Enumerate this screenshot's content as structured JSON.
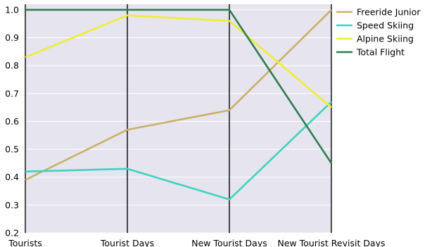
{
  "chart_data": {
    "type": "line",
    "subtype": "parallel-coordinates",
    "title": "",
    "xlabel": "",
    "ylabel": "",
    "categories": [
      "Tourists",
      "Tourist Days",
      "New Tourist Days",
      "New Tourist Revisit Days"
    ],
    "ylim": [
      0.2,
      1.02
    ],
    "yticks": [
      "0.2",
      "0.3",
      "0.4",
      "0.5",
      "0.6",
      "0.7",
      "0.8",
      "0.9",
      "1.0"
    ],
    "grid": true,
    "legend_position": "top-right",
    "series": [
      {
        "name": "Freeride Junior",
        "color": "#c9b165",
        "values": [
          0.39,
          0.57,
          0.64,
          1.0
        ]
      },
      {
        "name": "Speed Skiing",
        "color": "#3dd3c0",
        "values": [
          0.42,
          0.43,
          0.32,
          0.67
        ]
      },
      {
        "name": "Alpine Skiing",
        "color": "#eeee33",
        "values": [
          0.83,
          0.98,
          0.96,
          0.65
        ]
      },
      {
        "name": "Total Flight",
        "color": "#2e7d4f",
        "values": [
          1.0,
          1.0,
          1.0,
          0.45
        ]
      }
    ],
    "colors": {
      "plot_background": "#e6e4ef",
      "axis_line": "#000000",
      "text": "#000000"
    }
  }
}
